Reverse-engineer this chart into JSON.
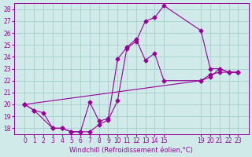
{
  "background_color": "#d0eaea",
  "grid_color": "#a0c8c8",
  "line_color": "#990099",
  "marker_color": "#990099",
  "xlabel": "Windchill (Refroidissement éolien,°C)",
  "xlabel_color": "#990099",
  "ylabel_color": "#990099",
  "ylim": [
    17.5,
    28.5
  ],
  "yticks": [
    18,
    19,
    20,
    21,
    22,
    23,
    24,
    25,
    26,
    27,
    28
  ],
  "xticks": [
    0,
    1,
    2,
    3,
    4,
    5,
    6,
    7,
    8,
    9,
    10,
    11,
    12,
    13,
    14,
    15,
    19,
    20,
    21,
    22,
    23
  ],
  "curve1_x": [
    0,
    1,
    3,
    4,
    5,
    6,
    7,
    8,
    9,
    10,
    11,
    12,
    13,
    14,
    15,
    19,
    20,
    21,
    22,
    23
  ],
  "curve1_y": [
    20.0,
    19.5,
    18.0,
    18.0,
    17.7,
    17.7,
    17.7,
    18.3,
    18.7,
    20.3,
    24.7,
    25.3,
    27.0,
    27.3,
    28.3,
    26.2,
    23.0,
    23.0,
    22.7,
    22.7
  ],
  "curve2_x": [
    0,
    1,
    2,
    3,
    4,
    5,
    6,
    7,
    8,
    9,
    10,
    11,
    12,
    13,
    14,
    15,
    19,
    20,
    21,
    22,
    23
  ],
  "curve2_y": [
    20.0,
    19.5,
    19.3,
    18.0,
    18.0,
    17.7,
    17.7,
    20.2,
    18.6,
    18.8,
    23.8,
    24.8,
    25.5,
    23.7,
    24.3,
    22.0,
    22.0,
    22.3,
    23.0,
    22.7,
    22.7
  ],
  "curve3_x": [
    0,
    19,
    20,
    21,
    22,
    23
  ],
  "curve3_y": [
    20.0,
    22.0,
    22.5,
    22.7,
    22.7,
    22.7
  ],
  "figsize": [
    3.2,
    2.0
  ],
  "dpi": 100
}
